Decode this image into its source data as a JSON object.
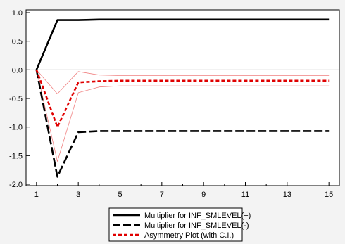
{
  "chart_data": {
    "type": "line",
    "x": [
      1,
      2,
      3,
      4,
      5,
      6,
      7,
      8,
      9,
      10,
      11,
      12,
      13,
      14,
      15
    ],
    "xticks": [
      "1",
      "3",
      "5",
      "7",
      "9",
      "11",
      "13",
      "15"
    ],
    "yticks": [
      "1.0",
      "0.5",
      "0.0",
      "-0.5",
      "-1.0",
      "-1.5",
      "-2.0"
    ],
    "ylim": [
      -2.0,
      1.0
    ],
    "xlim": [
      0.5,
      15.5
    ],
    "grid": false,
    "zero_line": true,
    "legend_position": "bottom-center",
    "series": [
      {
        "name": "Multiplier for INF_SMLEVEL(+)",
        "style": "solid-thick",
        "color": "#000000",
        "values": [
          0.0,
          0.87,
          0.87,
          0.88,
          0.88,
          0.88,
          0.88,
          0.88,
          0.88,
          0.88,
          0.88,
          0.88,
          0.88,
          0.88,
          0.88
        ]
      },
      {
        "name": "Multiplier for INF_SMLEVEL(-)",
        "style": "long-dash-thick",
        "color": "#000000",
        "values": [
          0.0,
          -1.87,
          -1.09,
          -1.07,
          -1.07,
          -1.07,
          -1.07,
          -1.07,
          -1.07,
          -1.07,
          -1.07,
          -1.07,
          -1.07,
          -1.07,
          -1.07
        ]
      },
      {
        "name": "Asymmetry Plot (with C.I.)",
        "style": "short-dash-thick",
        "color": "#e00000",
        "values": [
          0.0,
          -1.0,
          -0.22,
          -0.2,
          -0.19,
          -0.19,
          -0.19,
          -0.19,
          -0.19,
          -0.19,
          -0.19,
          -0.19,
          -0.19,
          -0.19,
          -0.19
        ]
      },
      {
        "name": "",
        "style": "thin",
        "color": "#f08080",
        "values": [
          0.0,
          -0.42,
          -0.03,
          -0.09,
          -0.1,
          -0.1,
          -0.1,
          -0.1,
          -0.1,
          -0.1,
          -0.1,
          -0.1,
          -0.1,
          -0.1,
          -0.1
        ]
      },
      {
        "name": "",
        "style": "thin",
        "color": "#f08080",
        "values": [
          0.0,
          -1.6,
          -0.4,
          -0.3,
          -0.28,
          -0.28,
          -0.28,
          -0.28,
          -0.28,
          -0.28,
          -0.28,
          -0.28,
          -0.28,
          -0.28,
          -0.28
        ]
      }
    ]
  }
}
